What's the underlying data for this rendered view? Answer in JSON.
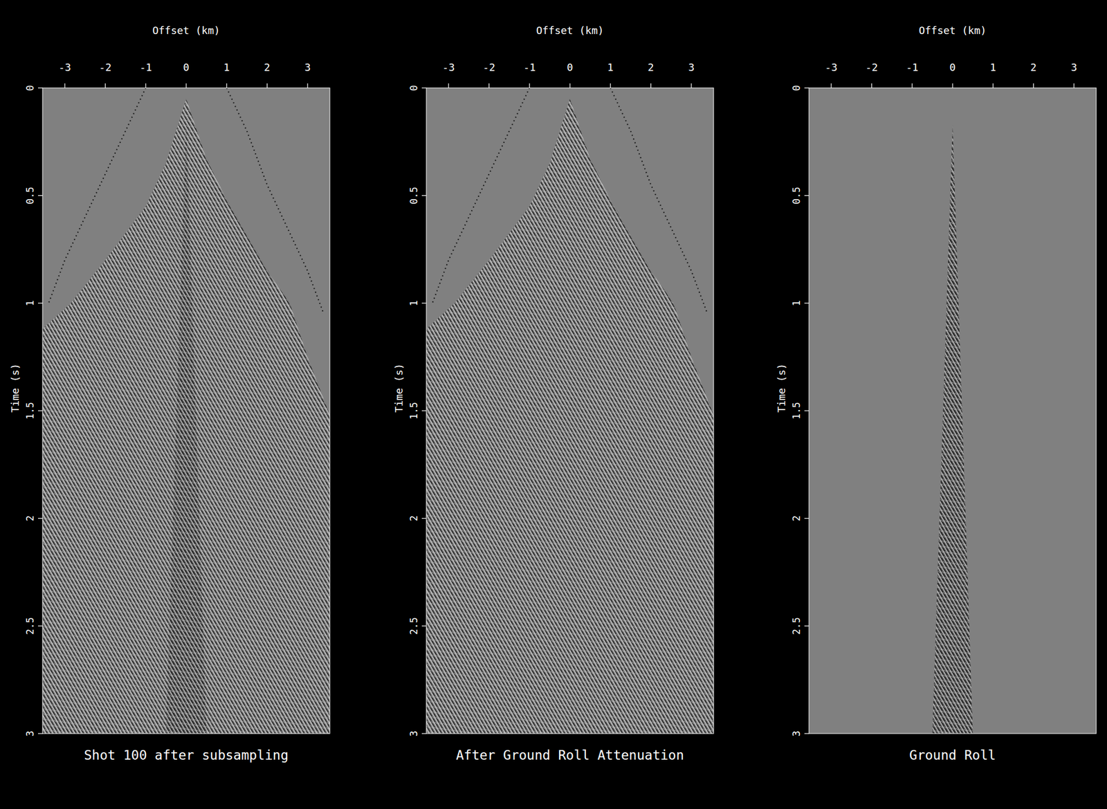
{
  "chart_data": [
    {
      "type": "area",
      "title": "Shot 100 after subsampling",
      "x_label": "Offset (km)",
      "y_label": "Time (s)",
      "xlim": [
        -3.55,
        3.55
      ],
      "ylim": [
        0,
        3
      ],
      "xticks": [
        -3,
        -2,
        -1,
        0,
        1,
        2,
        3
      ],
      "yticks": [
        0,
        0.5,
        1,
        1.5,
        2,
        2.5,
        3
      ],
      "series": [
        {
          "type": "area",
          "color": "#7a7a7a",
          "x": [
            -3.55,
            -2.85,
            -2,
            -1,
            -0.5,
            0,
            0.5,
            1,
            2,
            2.56,
            3,
            3.55
          ],
          "values": [
            1.12,
            1.0,
            0.8,
            0.55,
            0.35,
            0.05,
            0.33,
            0.52,
            0.85,
            1.0,
            1.25,
            1.52
          ]
        },
        {
          "type": "line",
          "color": "#1a1a1a",
          "line_style": "dotted",
          "x": [
            -1,
            -1.5,
            -2,
            -2.5,
            -3,
            -3.4
          ],
          "values": [
            0,
            0.2,
            0.4,
            0.6,
            0.8,
            1.0
          ]
        },
        {
          "type": "line",
          "color": "#1a1a1a",
          "line_style": "dotted",
          "x": [
            1,
            1.5,
            2,
            2.5,
            3,
            3.4
          ],
          "values": [
            0,
            0.2,
            0.45,
            0.65,
            0.85,
            1.05
          ]
        },
        {
          "type": "area",
          "color": "#5a5a5a",
          "x": [
            -0.5,
            0,
            0.5
          ],
          "values": [
            3,
            0.17,
            3
          ]
        }
      ]
    },
    {
      "type": "area",
      "title": "After Ground Roll Attenuation",
      "x_label": "Offset (km)",
      "y_label": "Time (s)",
      "xlim": [
        -3.55,
        3.55
      ],
      "ylim": [
        0,
        3
      ],
      "xticks": [
        -3,
        -2,
        -1,
        0,
        1,
        2,
        3
      ],
      "yticks": [
        0,
        0.5,
        1,
        1.5,
        2,
        2.5,
        3
      ],
      "series": [
        {
          "type": "area",
          "color": "#7a7a7a",
          "x": [
            -3.55,
            -2.85,
            -2,
            -1,
            -0.5,
            0,
            0.5,
            1,
            2,
            2.56,
            3,
            3.55
          ],
          "values": [
            1.12,
            1.0,
            0.8,
            0.55,
            0.35,
            0.05,
            0.33,
            0.52,
            0.85,
            1.0,
            1.25,
            1.52
          ]
        },
        {
          "type": "line",
          "color": "#1a1a1a",
          "line_style": "dotted",
          "x": [
            -1,
            -1.5,
            -2,
            -2.5,
            -3,
            -3.4
          ],
          "values": [
            0,
            0.2,
            0.4,
            0.6,
            0.8,
            1.0
          ]
        },
        {
          "type": "line",
          "color": "#1a1a1a",
          "line_style": "dotted",
          "x": [
            1,
            1.5,
            2,
            2.5,
            3,
            3.4
          ],
          "values": [
            0,
            0.2,
            0.45,
            0.65,
            0.85,
            1.05
          ]
        }
      ]
    },
    {
      "type": "area",
      "title": "Ground Roll",
      "x_label": "Offset (km)",
      "y_label": "Time (s)",
      "xlim": [
        -3.55,
        3.55
      ],
      "ylim": [
        0,
        3
      ],
      "xticks": [
        -3,
        -2,
        -1,
        0,
        1,
        2,
        3
      ],
      "yticks": [
        0,
        0.5,
        1,
        1.5,
        2,
        2.5,
        3
      ],
      "series": [
        {
          "type": "area",
          "color": "#5a5a5a",
          "x": [
            -0.5,
            0,
            0.5
          ],
          "values": [
            3,
            0.17,
            3
          ]
        }
      ]
    }
  ]
}
